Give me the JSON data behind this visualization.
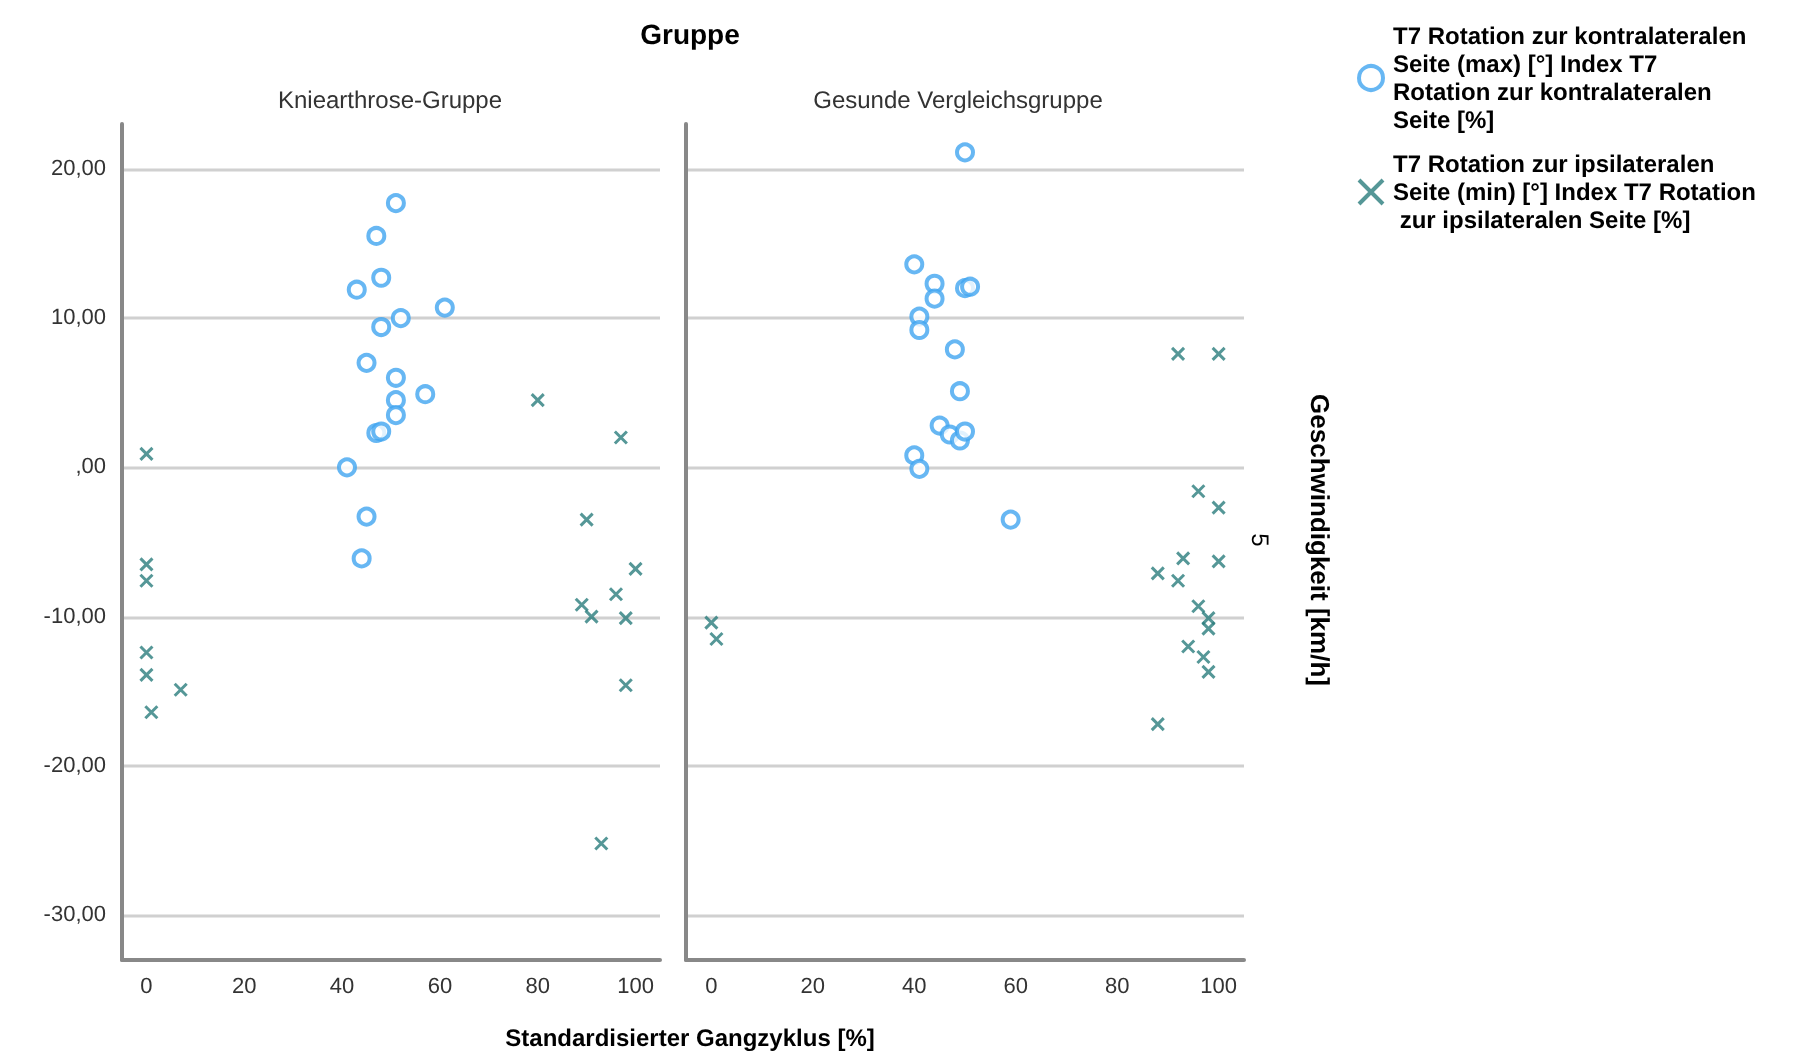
{
  "chart_data": [
    {
      "type": "scatter",
      "annotations": [
        "Gruppe"
      ],
      "subtitle": "Kniearthrose-Gruppe",
      "xlabel": "Standardisierter Gangzyklus [%]",
      "xlim": [
        -5,
        105
      ],
      "xticks": [
        0,
        20,
        40,
        60,
        80,
        100
      ],
      "ylim": [
        -33,
        23
      ],
      "yticks": [
        {
          "value": -30,
          "label": "-30,00"
        },
        {
          "value": -20,
          "label": "-20,00"
        },
        {
          "value": -10,
          "label": "-10,00"
        },
        {
          "value": 0,
          "label": ",00"
        },
        {
          "value": 10,
          "label": "10,00"
        },
        {
          "value": 20,
          "label": "20,00"
        }
      ],
      "grid": "y",
      "legend": "right",
      "series": [
        {
          "name": "T7 Rotation zur kontralateralen Seite (max) [°] Index T7 Rotation zur kontralateralen Seite [%]",
          "color": "#41a5f0",
          "marker": "circle",
          "x": [
            51,
            47,
            48,
            43,
            52,
            61,
            48,
            45,
            51,
            51,
            57,
            51,
            47,
            48,
            41,
            45,
            44
          ],
          "values": [
            17.7,
            15.5,
            12.7,
            11.9,
            10.0,
            10.7,
            9.4,
            7.0,
            6.0,
            4.5,
            4.9,
            3.5,
            2.3,
            2.4,
            0,
            -3.3,
            -6.1
          ]
        },
        {
          "name": "T7 Rotation zur ipsilateralen Seite (min) [°] Index T7 Rotation zur ipsilateralen Seite [%]",
          "color": "#2a7d7d",
          "marker": "cross",
          "x": [
            0,
            0,
            0,
            80,
            97,
            90,
            100,
            96,
            89,
            91,
            98,
            98,
            0,
            0,
            1,
            7,
            93
          ],
          "values": [
            0.9,
            -6.5,
            -7.6,
            4.5,
            2.0,
            -3.5,
            -6.8,
            -8.5,
            -9.2,
            -10.0,
            -10.1,
            -14.6,
            -12.4,
            -13.9,
            -16.4,
            -14.9,
            -25.2
          ]
        }
      ]
    },
    {
      "type": "scatter",
      "subtitle": "Gesunde Vergleichsgruppe",
      "xlim": [
        -5,
        105
      ],
      "xticks": [
        0,
        20,
        40,
        60,
        80,
        100
      ],
      "ylim": [
        -33,
        23
      ],
      "yticks": [
        -30,
        -20,
        -10,
        0,
        10,
        20
      ],
      "grid": "y",
      "tick_labels": "x",
      "annotations": [
        "5",
        "Geschwindigkeit [km/h]"
      ],
      "series": [
        {
          "color": "#41a5f0",
          "marker": "circle",
          "x": [
            50,
            40,
            44,
            44,
            50,
            51,
            41,
            41,
            48,
            49,
            45,
            47,
            49,
            50,
            40,
            41,
            59
          ],
          "values": [
            21.1,
            13.6,
            12.3,
            11.3,
            12.0,
            12.1,
            10.1,
            9.2,
            7.9,
            5.1,
            2.8,
            2.2,
            1.8,
            2.4,
            0.8,
            -0.1,
            -3.5
          ]
        },
        {
          "color": "#2a7d7d",
          "marker": "cross",
          "x": [
            92,
            100,
            96,
            100,
            93,
            100,
            88,
            92,
            96,
            98,
            98,
            94,
            97,
            98,
            88,
            0,
            1
          ],
          "values": [
            7.6,
            7.6,
            -1.6,
            -2.7,
            -6.1,
            -6.3,
            -7.1,
            -7.6,
            -9.3,
            -10.1,
            -10.8,
            -12.0,
            -12.7,
            -13.7,
            -17.2,
            -10.4,
            -11.5
          ]
        }
      ]
    }
  ]
}
